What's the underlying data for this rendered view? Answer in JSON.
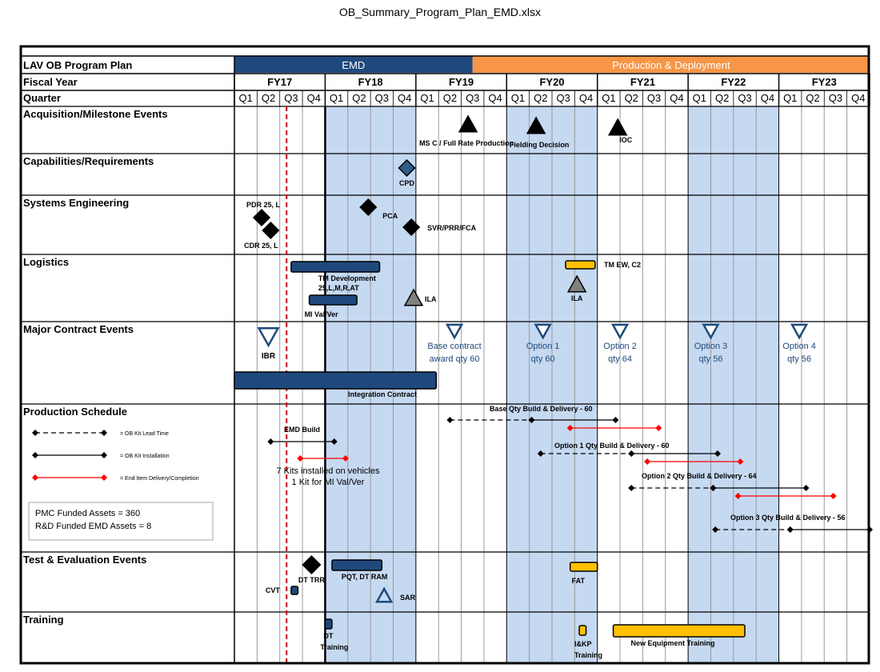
{
  "file_title": "OB_Summary_Program_Plan_EMD.xlsx",
  "colors": {
    "emd": "#1f497d",
    "production": "#f79646",
    "shade": "#c5d9f1",
    "bar_blue": "#1f497d",
    "bar_gold": "#ffc000",
    "red": "#ff0000",
    "gray_tri": "#808080"
  },
  "chart_data": {
    "type": "gantt",
    "title": "LAV OB Program Plan",
    "header_labels": {
      "fiscal_year": "Fiscal Year",
      "quarter": "Quarter"
    },
    "phases": [
      {
        "label": "EMD",
        "start": 0,
        "end": 10.5
      },
      {
        "label": "Production & Deployment",
        "start": 10.5,
        "end": 28
      }
    ],
    "fiscal_years": [
      "FY17",
      "FY18",
      "FY19",
      "FY20",
      "FY21",
      "FY22",
      "FY23"
    ],
    "quarters": [
      "Q1",
      "Q2",
      "Q3",
      "Q4"
    ],
    "shaded_years": [
      1,
      3,
      5
    ],
    "current_date_quarter": 2.3,
    "rows": [
      {
        "label": "Acquisition/Milestone Events"
      },
      {
        "label": "Capabilities/Requirements"
      },
      {
        "label": "Systems Engineering"
      },
      {
        "label": "Logistics"
      },
      {
        "label": "Major Contract Events"
      },
      {
        "label": "Production Schedule"
      },
      {
        "label": "Test & Evaluation Events"
      },
      {
        "label": "Training"
      }
    ],
    "milestones": [
      {
        "row": 0,
        "shape": "triangle",
        "style": "black",
        "x": 10.3,
        "label": "MS C / Full Rate Production"
      },
      {
        "row": 0,
        "shape": "triangle",
        "style": "black",
        "x": 13.3,
        "label": "Fielding Decision"
      },
      {
        "row": 0,
        "shape": "triangle",
        "style": "black",
        "x": 16.9,
        "label": "IOC"
      },
      {
        "row": 1,
        "shape": "diamond",
        "style": "blue",
        "x": 7.6,
        "label": "CPD"
      },
      {
        "row": 2,
        "shape": "diamond",
        "style": "black",
        "x": 1.2,
        "label": "PDR 25, L"
      },
      {
        "row": 2,
        "shape": "diamond",
        "style": "black",
        "x": 1.6,
        "label": "CDR 25, L"
      },
      {
        "row": 2,
        "shape": "diamond",
        "style": "black",
        "x": 5.9,
        "label": "PCA"
      },
      {
        "row": 2,
        "shape": "diamond",
        "style": "black",
        "x": 7.8,
        "label": "SVR/PRR/FCA"
      },
      {
        "row": 3,
        "shape": "triangle",
        "style": "gray",
        "x": 7.9,
        "label": "ILA"
      },
      {
        "row": 3,
        "shape": "triangle",
        "style": "gray",
        "x": 15.1,
        "label": "ILA"
      },
      {
        "row": 4,
        "shape": "triangle-down",
        "style": "outline",
        "x": 1.5,
        "label": "IBR"
      },
      {
        "row": 4,
        "shape": "triangle-down",
        "style": "outline",
        "x": 9.7,
        "label": "Base contract award qty 60"
      },
      {
        "row": 4,
        "shape": "triangle-down",
        "style": "outline",
        "x": 13.6,
        "label": "Option 1 qty 60"
      },
      {
        "row": 4,
        "shape": "triangle-down",
        "style": "outline",
        "x": 17.0,
        "label": "Option 2 qty 64"
      },
      {
        "row": 4,
        "shape": "triangle-down",
        "style": "outline",
        "x": 21.0,
        "label": "Option 3 qty 56"
      },
      {
        "row": 4,
        "shape": "triangle-down",
        "style": "outline",
        "x": 24.9,
        "label": "Option 4 qty 56"
      },
      {
        "row": 6,
        "shape": "diamond",
        "style": "black",
        "x": 3.4,
        "label": "DT TRR"
      },
      {
        "row": 6,
        "shape": "triangle",
        "style": "outline",
        "x": 6.6,
        "label": "SAR"
      }
    ],
    "bars": [
      {
        "row": 3,
        "start": 2.5,
        "end": 6.4,
        "style": "blue",
        "label": "TM Development 25,L,M,R,AT"
      },
      {
        "row": 3,
        "start": 3.3,
        "end": 5.4,
        "style": "blue",
        "label": "MI Val/Ver"
      },
      {
        "row": 3,
        "start": 14.6,
        "end": 15.9,
        "style": "gold",
        "label": "TM EW, C2"
      },
      {
        "row": 4,
        "start": 0,
        "end": 8.9,
        "style": "blue",
        "label": "Integration Contract"
      },
      {
        "row": 6,
        "start": 2.5,
        "end": 2.8,
        "style": "blue",
        "label": "CVT"
      },
      {
        "row": 6,
        "start": 4.3,
        "end": 6.5,
        "style": "blue",
        "label": "PQT, DT RAM"
      },
      {
        "row": 6,
        "start": 14.8,
        "end": 16.0,
        "style": "gold",
        "label": "FAT"
      },
      {
        "row": 7,
        "start": 4.0,
        "end": 4.3,
        "style": "blue",
        "label": "DT Training"
      },
      {
        "row": 7,
        "start": 15.2,
        "end": 15.5,
        "style": "gold",
        "label": "I&KP Training"
      },
      {
        "row": 7,
        "start": 16.7,
        "end": 22.5,
        "style": "gold",
        "label": "New Equipment Training"
      }
    ],
    "production_schedule": [
      {
        "label": "EMD Build",
        "segments": [
          {
            "type": "install",
            "start": 1.6,
            "end": 4.4
          }
        ]
      },
      {
        "label": "7 Kits installed on vehicles 1 Kit for MI Val/Ver",
        "segments": [
          {
            "type": "delivery",
            "start": 2.9,
            "end": 4.9
          }
        ]
      },
      {
        "label": "Base Qty Build & Delivery - 60",
        "segments": [
          {
            "type": "lead",
            "start": 9.5,
            "end": 13.1
          },
          {
            "type": "install",
            "start": 13.1,
            "end": 16.8
          },
          {
            "type": "delivery",
            "start": 14.8,
            "end": 18.7
          }
        ]
      },
      {
        "label": "Option 1 Qty Build & Delivery - 60",
        "segments": [
          {
            "type": "lead",
            "start": 13.5,
            "end": 17.5
          },
          {
            "type": "install",
            "start": 17.5,
            "end": 21.3
          },
          {
            "type": "delivery",
            "start": 18.2,
            "end": 22.3
          }
        ]
      },
      {
        "label": "Option 2 Qty Build & Delivery - 64",
        "segments": [
          {
            "type": "lead",
            "start": 17.5,
            "end": 21.1
          },
          {
            "type": "install",
            "start": 21.1,
            "end": 25.2
          },
          {
            "type": "delivery",
            "start": 22.2,
            "end": 26.4
          }
        ]
      },
      {
        "label": "Option 3 Qty Build & Delivery - 56",
        "segments": [
          {
            "type": "lead",
            "start": 21.2,
            "end": 24.5
          },
          {
            "type": "install",
            "start": 24.5,
            "end": 28
          }
        ]
      }
    ],
    "legend": [
      {
        "type": "lead",
        "label": "= OB Kit Lead Time"
      },
      {
        "type": "install",
        "label": "= OB Kit Installation"
      },
      {
        "type": "delivery",
        "label": "= End Item Delivery/Completion"
      }
    ],
    "funding_notes": [
      "PMC Funded Assets = 360",
      "R&D Funded  EMD Assets = 8"
    ]
  }
}
